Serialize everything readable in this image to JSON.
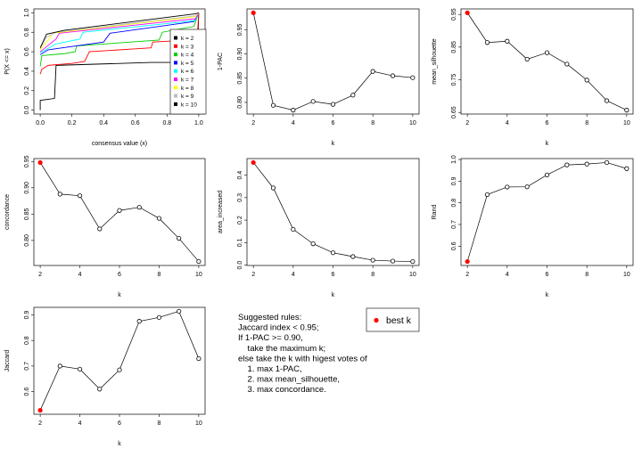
{
  "chart_data": [
    {
      "type": "line",
      "id": "ecdf",
      "xlabel": "consensus value (x)",
      "ylabel": "P(X <= x)",
      "xlim": [
        0,
        1
      ],
      "ylim": [
        0,
        1
      ],
      "xticks": [
        "0.0",
        "0.2",
        "0.4",
        "0.6",
        "0.8",
        "1.0"
      ],
      "yticks": [
        "0.0",
        "0.2",
        "0.4",
        "0.6",
        "0.8",
        "1.0"
      ],
      "legend_placement": "bottom-right",
      "series": [
        {
          "name": "k = 2",
          "color": "#000000",
          "points": [
            [
              0,
              0
            ],
            [
              0,
              0.1
            ],
            [
              0.09,
              0.12
            ],
            [
              0.1,
              0.46
            ],
            [
              0.7,
              0.49
            ],
            [
              0.99,
              0.49
            ],
            [
              1,
              1
            ]
          ]
        },
        {
          "name": "k = 3",
          "color": "#ff0000",
          "points": [
            [
              0,
              0.37
            ],
            [
              0.01,
              0.42
            ],
            [
              0.05,
              0.46
            ],
            [
              0.2,
              0.48
            ],
            [
              0.28,
              0.5
            ],
            [
              0.31,
              0.6
            ],
            [
              0.6,
              0.63
            ],
            [
              0.7,
              0.64
            ],
            [
              0.71,
              0.7
            ],
            [
              0.95,
              0.72
            ],
            [
              0.99,
              0.73
            ],
            [
              1,
              1
            ]
          ]
        },
        {
          "name": "k = 4",
          "color": "#00cd00",
          "points": [
            [
              0,
              0.45
            ],
            [
              0.01,
              0.56
            ],
            [
              0.15,
              0.58
            ],
            [
              0.22,
              0.6
            ],
            [
              0.23,
              0.66
            ],
            [
              0.75,
              0.72
            ],
            [
              0.77,
              0.8
            ],
            [
              0.97,
              0.86
            ],
            [
              1,
              1
            ]
          ]
        },
        {
          "name": "k = 5",
          "color": "#0000ff",
          "points": [
            [
              0,
              0.57
            ],
            [
              0.05,
              0.62
            ],
            [
              0.4,
              0.7
            ],
            [
              0.44,
              0.79
            ],
            [
              0.97,
              0.91
            ],
            [
              1,
              1
            ]
          ]
        },
        {
          "name": "k = 6",
          "color": "#00ffff",
          "points": [
            [
              0,
              0.59
            ],
            [
              0.1,
              0.68
            ],
            [
              0.25,
              0.73
            ],
            [
              0.27,
              0.8
            ],
            [
              0.98,
              0.92
            ],
            [
              1,
              1
            ]
          ]
        },
        {
          "name": "k = 7",
          "color": "#ff00ff",
          "points": [
            [
              0,
              0.6
            ],
            [
              0.1,
              0.73
            ],
            [
              0.12,
              0.79
            ],
            [
              0.98,
              0.94
            ],
            [
              1,
              1
            ]
          ]
        },
        {
          "name": "k = 8",
          "color": "#ffff00",
          "points": [
            [
              0,
              0.62
            ],
            [
              0.06,
              0.74
            ],
            [
              0.08,
              0.79
            ],
            [
              0.98,
              0.96
            ],
            [
              1,
              1
            ]
          ]
        },
        {
          "name": "k = 9",
          "color": "#bebebe",
          "points": [
            [
              0,
              0.63
            ],
            [
              0.04,
              0.75
            ],
            [
              0.1,
              0.8
            ],
            [
              0.98,
              0.97
            ],
            [
              1,
              1
            ]
          ]
        },
        {
          "name": "k = 10",
          "color": "#000000",
          "points": [
            [
              0,
              0.64
            ],
            [
              0.04,
              0.78
            ],
            [
              0.15,
              0.82
            ],
            [
              0.98,
              0.99
            ],
            [
              1,
              1
            ]
          ]
        }
      ]
    },
    {
      "type": "line",
      "id": "pac",
      "xlabel": "k",
      "ylabel": "1-PAC",
      "x": [
        2,
        3,
        4,
        5,
        6,
        7,
        8,
        9,
        10
      ],
      "values": [
        0.985,
        0.794,
        0.784,
        0.802,
        0.796,
        0.815,
        0.864,
        0.855,
        0.851
      ],
      "yticks": [
        0.8,
        0.85,
        0.9,
        0.95
      ],
      "ytick_labels": [
        "0.80",
        "0.85",
        "0.90",
        "0.95"
      ],
      "best_k": 2
    },
    {
      "type": "line",
      "id": "silhouette",
      "xlabel": "k",
      "ylabel": "mean_silhouette",
      "x": [
        2,
        3,
        4,
        5,
        6,
        7,
        8,
        9,
        10
      ],
      "values": [
        0.955,
        0.864,
        0.868,
        0.813,
        0.833,
        0.798,
        0.749,
        0.686,
        0.657
      ],
      "yticks": [
        0.65,
        0.75,
        0.85,
        0.95
      ],
      "ytick_labels": [
        "0.65",
        "0.75",
        "0.85",
        "0.95"
      ],
      "best_k": 2
    },
    {
      "type": "line",
      "id": "concordance",
      "xlabel": "k",
      "ylabel": "concordance",
      "x": [
        2,
        3,
        4,
        5,
        6,
        7,
        8,
        9,
        10
      ],
      "values": [
        0.948,
        0.888,
        0.885,
        0.822,
        0.857,
        0.863,
        0.842,
        0.804,
        0.76
      ],
      "yticks": [
        0.8,
        0.85,
        0.9,
        0.95
      ],
      "ytick_labels": [
        "0.80",
        "0.85",
        "0.90",
        "0.95"
      ],
      "best_k": 2
    },
    {
      "type": "line",
      "id": "area",
      "xlabel": "k",
      "ylabel": "area_increased",
      "x": [
        2,
        3,
        4,
        5,
        6,
        7,
        8,
        9,
        10
      ],
      "values": [
        0.456,
        0.343,
        0.159,
        0.095,
        0.055,
        0.038,
        0.022,
        0.018,
        0.016
      ],
      "yticks": [
        0,
        0.1,
        0.2,
        0.3,
        0.4
      ],
      "ytick_labels": [
        "0.0",
        "0.1",
        "0.2",
        "0.3",
        "0.4"
      ],
      "best_k": 2
    },
    {
      "type": "line",
      "id": "rand",
      "xlabel": "k",
      "ylabel": "Rand",
      "x": [
        2,
        3,
        4,
        5,
        6,
        7,
        8,
        9,
        10
      ],
      "values": [
        0.529,
        0.838,
        0.873,
        0.874,
        0.929,
        0.975,
        0.979,
        0.986,
        0.958
      ],
      "yticks": [
        0.6,
        0.7,
        0.8,
        0.9,
        1.0
      ],
      "ytick_labels": [
        "0.6",
        "0.7",
        "0.8",
        "0.9",
        "1.0"
      ],
      "best_k": 2
    },
    {
      "type": "line",
      "id": "jaccard",
      "xlabel": "k",
      "ylabel": "Jaccard",
      "x": [
        2,
        3,
        4,
        5,
        6,
        7,
        8,
        9,
        10
      ],
      "values": [
        0.527,
        0.7,
        0.688,
        0.61,
        0.685,
        0.875,
        0.89,
        0.914,
        0.729
      ],
      "yticks": [
        0.6,
        0.7,
        0.8,
        0.9
      ],
      "ytick_labels": [
        "0.6",
        "0.7",
        "0.8",
        "0.9"
      ],
      "best_k": 2
    }
  ],
  "xticks_k": [
    "2",
    "4",
    "6",
    "8",
    "10"
  ],
  "rules": {
    "lines": [
      "Suggested rules:",
      "Jaccard index < 0.95;",
      "If 1-PAC >= 0.90,",
      "  take the maximum k;",
      "else take the k with higest votes of",
      "  1. max 1-PAC,",
      "  2. max mean_silhouette,",
      "  3. max concordance."
    ]
  },
  "best_k_legend": {
    "label": "best k",
    "color": "#ff0000"
  }
}
